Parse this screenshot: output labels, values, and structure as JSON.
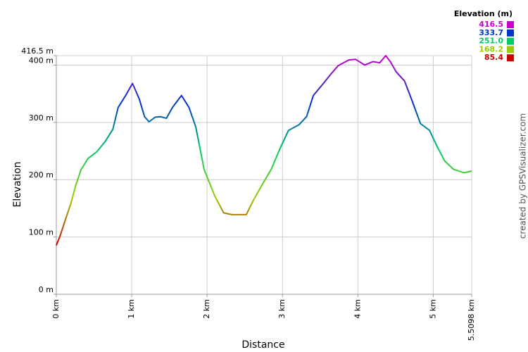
{
  "chart_data": {
    "type": "line",
    "x_label": "Distance",
    "y_label": "Elevation",
    "credit": "created by GPSVisualizer.com",
    "x": [
      0,
      0.05,
      0.11,
      0.19,
      0.26,
      0.33,
      0.42,
      0.54,
      0.65,
      0.75,
      0.82,
      0.92,
      1.01,
      1.1,
      1.17,
      1.23,
      1.31,
      1.38,
      1.46,
      1.54,
      1.66,
      1.76,
      1.85,
      1.96,
      2.1,
      2.22,
      2.33,
      2.52,
      2.61,
      2.73,
      2.85,
      2.97,
      3.08,
      3.22,
      3.32,
      3.41,
      3.53,
      3.64,
      3.74,
      3.88,
      3.97,
      4.09,
      4.2,
      4.29,
      4.37,
      4.43,
      4.51,
      4.62,
      4.71,
      4.83,
      4.95,
      5.04,
      5.15,
      5.27,
      5.41,
      5.5098
    ],
    "values": [
      85.4,
      102,
      126,
      157,
      191,
      218,
      237,
      249,
      267,
      288,
      326,
      347,
      368,
      341,
      310,
      301,
      309,
      310,
      307,
      326,
      347,
      326,
      292,
      218,
      172,
      142,
      139,
      139,
      163,
      191,
      218,
      255,
      286,
      296,
      310,
      347,
      366,
      384,
      399,
      409,
      410,
      400,
      406,
      404,
      416.5,
      406,
      388,
      372,
      341,
      298,
      286,
      261,
      233,
      218,
      212,
      215
    ],
    "xlim": [
      0,
      5.5098
    ],
    "ylim": [
      0,
      416.5
    ],
    "xticks": [
      {
        "value": 0,
        "label": "0 km"
      },
      {
        "value": 1,
        "label": "1 km"
      },
      {
        "value": 2,
        "label": "2 km"
      },
      {
        "value": 3,
        "label": "3 km"
      },
      {
        "value": 4,
        "label": "4 km"
      },
      {
        "value": 5,
        "label": "5 km"
      },
      {
        "value": 5.5098,
        "label": "5.5098 km"
      }
    ],
    "yticks": [
      {
        "value": 0,
        "label": "0 m"
      },
      {
        "value": 100,
        "label": "100 m"
      },
      {
        "value": 200,
        "label": "200 m"
      },
      {
        "value": 300,
        "label": "300 m"
      },
      {
        "value": 400,
        "label": "400 m"
      },
      {
        "value": 416.5,
        "label": "416.5 m"
      }
    ],
    "grid": true,
    "legend": {
      "title": "Elevation (m)",
      "position": "top-right",
      "entries": [
        {
          "value": 416.5,
          "label": "416.5",
          "color": "#cc00cc"
        },
        {
          "value": 333.7,
          "label": "333.7",
          "color": "#0033cc"
        },
        {
          "value": 251.0,
          "label": "251.0",
          "color": "#00cc66"
        },
        {
          "value": 168.2,
          "label": "168.2",
          "color": "#99cc00"
        },
        {
          "value": 85.4,
          "label": "85.4",
          "color": "#cc0000"
        }
      ]
    }
  }
}
